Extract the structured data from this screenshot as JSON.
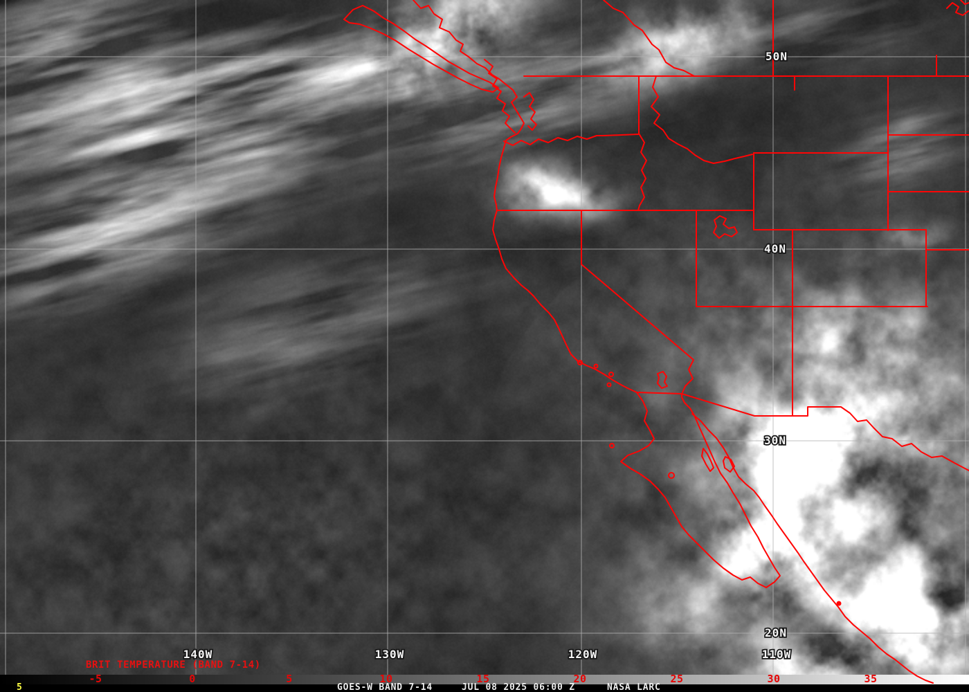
{
  "map": {
    "annotation": "BRIT TEMPERATURE (BAND 7-14)",
    "lat_labels": [
      "50N",
      "40N",
      "30N",
      "20N"
    ],
    "lon_labels": [
      "140W",
      "130W",
      "120W",
      "110W"
    ]
  },
  "colorbar": {
    "tick_labels": [
      "-5",
      "0",
      "5",
      "10",
      "15",
      "20",
      "25",
      "30",
      "35"
    ]
  },
  "status_bar": {
    "left_value": "5",
    "product": "GOES-W BAND 7-14",
    "timestamp": "JUL 08 2025 06:00 Z",
    "source": "NASA LARC"
  },
  "colors": {
    "boundary_red": "#ff0505",
    "annotation_red": "#e81010",
    "tick_red": "#e60606",
    "grid_gray": "#b2b2b2",
    "label_white": "#f4f4f4",
    "status_yellow": "#ffff44",
    "status_white": "#ededed"
  }
}
